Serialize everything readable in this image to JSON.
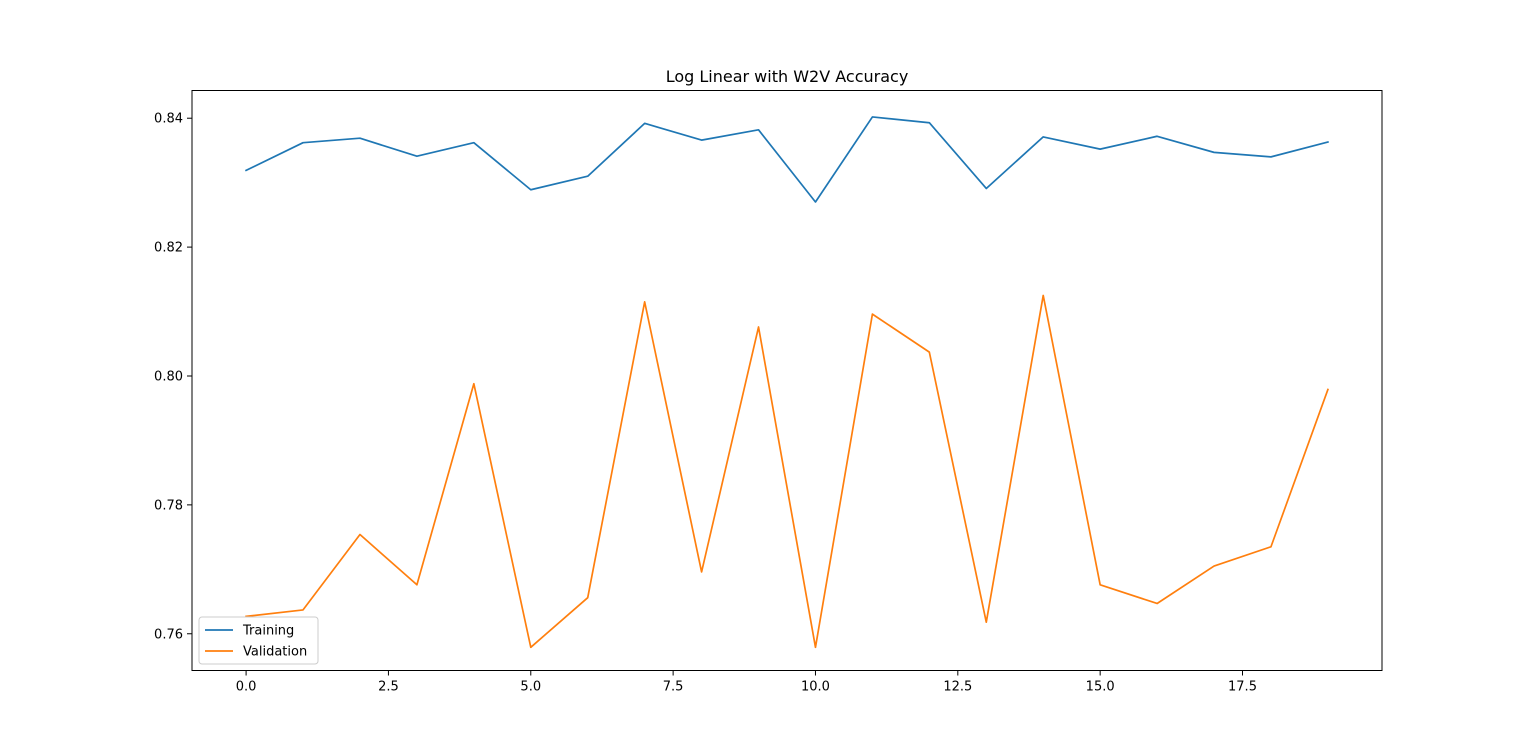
{
  "chart_data": {
    "type": "line",
    "title": "Log Linear with W2V Accuracy",
    "xlabel": "",
    "ylabel": "",
    "x": [
      0,
      1,
      2,
      3,
      4,
      5,
      6,
      7,
      8,
      9,
      10,
      11,
      12,
      13,
      14,
      15,
      16,
      17,
      18,
      19
    ],
    "xlim": [
      -0.95,
      19.95
    ],
    "ylim": [
      0.7543,
      0.8443
    ],
    "xticks": [
      0.0,
      2.5,
      5.0,
      7.5,
      10.0,
      12.5,
      15.0,
      17.5
    ],
    "xtick_labels": [
      "0.0",
      "2.5",
      "5.0",
      "7.5",
      "10.0",
      "12.5",
      "15.0",
      "17.5"
    ],
    "yticks": [
      0.76,
      0.78,
      0.8,
      0.82,
      0.84
    ],
    "ytick_labels": [
      "0.76",
      "0.78",
      "0.80",
      "0.82",
      "0.84"
    ],
    "grid": false,
    "legend_position": "lower-left",
    "series": [
      {
        "name": "Training",
        "color": "#1f77b4",
        "values": [
          0.8319,
          0.8362,
          0.8369,
          0.8341,
          0.8362,
          0.8289,
          0.831,
          0.8392,
          0.8366,
          0.8382,
          0.827,
          0.8402,
          0.8393,
          0.8291,
          0.8371,
          0.8352,
          0.8372,
          0.8347,
          0.834,
          0.8363
        ]
      },
      {
        "name": "Validation",
        "color": "#ff7f0e",
        "values": [
          0.7627,
          0.7637,
          0.7754,
          0.7676,
          0.7988,
          0.7579,
          0.7656,
          0.8115,
          0.7696,
          0.8076,
          0.7579,
          0.8096,
          0.8037,
          0.7618,
          0.8125,
          0.7676,
          0.7647,
          0.7705,
          0.7735,
          0.7979
        ]
      }
    ]
  }
}
